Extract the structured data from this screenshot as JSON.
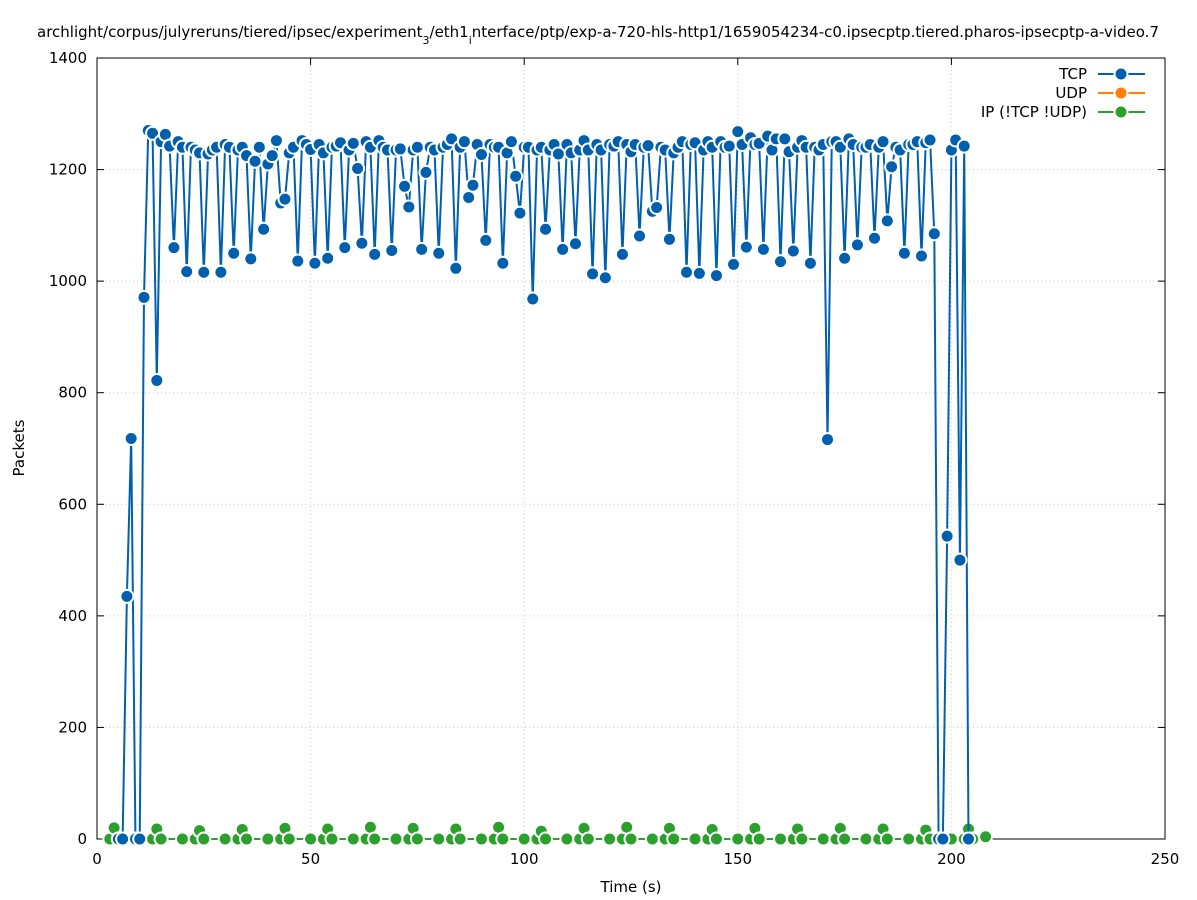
{
  "chart_data": {
    "type": "line",
    "title": "archlight/corpus/julyreruns/tiered/ipsec/experiment",
    "title_sub": "3",
    "title_mid": "/eth1",
    "title_sub2": "i",
    "title_tail": "nterface/ptp/exp-a-720-hls-http1/1659054234-c0.ipsecptp.tiered.pharos-ipsecptp-a-video.7",
    "xlabel": "Time (s)",
    "ylabel": "Packets",
    "xlim": [
      0,
      250
    ],
    "ylim": [
      0,
      1400
    ],
    "xticks": [
      "0",
      "50",
      "100",
      "150",
      "200",
      "250"
    ],
    "yticks": [
      "0",
      "200",
      "400",
      "600",
      "800",
      "1000",
      "1200",
      "1400"
    ],
    "grid": true,
    "legend_position": "top-right",
    "series": [
      {
        "name": "TCP",
        "color": "#0060ad",
        "points": [
          [
            5,
            0
          ],
          [
            6,
            0
          ],
          [
            7,
            435
          ],
          [
            8,
            718
          ],
          [
            9,
            0
          ],
          [
            10,
            0
          ],
          [
            11,
            971
          ],
          [
            12,
            1270
          ],
          [
            13,
            1265
          ],
          [
            14,
            822
          ],
          [
            15,
            1250
          ],
          [
            16,
            1263
          ],
          [
            17,
            1242
          ],
          [
            18,
            1060
          ],
          [
            19,
            1250
          ],
          [
            20,
            1240
          ],
          [
            21,
            1017
          ],
          [
            22,
            1240
          ],
          [
            23,
            1235
          ],
          [
            24,
            1230
          ],
          [
            25,
            1016
          ],
          [
            26,
            1228
          ],
          [
            27,
            1235
          ],
          [
            28,
            1240
          ],
          [
            29,
            1016
          ],
          [
            30,
            1245
          ],
          [
            31,
            1240
          ],
          [
            32,
            1050
          ],
          [
            33,
            1235
          ],
          [
            34,
            1240
          ],
          [
            35,
            1225
          ],
          [
            36,
            1040
          ],
          [
            37,
            1215
          ],
          [
            38,
            1240
          ],
          [
            39,
            1093
          ],
          [
            40,
            1210
          ],
          [
            41,
            1225
          ],
          [
            42,
            1252
          ],
          [
            43,
            1140
          ],
          [
            44,
            1147
          ],
          [
            45,
            1230
          ],
          [
            46,
            1240
          ],
          [
            47,
            1036
          ],
          [
            48,
            1252
          ],
          [
            49,
            1245
          ],
          [
            50,
            1236
          ],
          [
            51,
            1032
          ],
          [
            52,
            1245
          ],
          [
            53,
            1230
          ],
          [
            54,
            1041
          ],
          [
            55,
            1240
          ],
          [
            56,
            1242
          ],
          [
            57,
            1248
          ],
          [
            58,
            1060
          ],
          [
            59,
            1235
          ],
          [
            60,
            1247
          ],
          [
            61,
            1202
          ],
          [
            62,
            1068
          ],
          [
            63,
            1250
          ],
          [
            64,
            1240
          ],
          [
            65,
            1048
          ],
          [
            66,
            1252
          ],
          [
            67,
            1240
          ],
          [
            68,
            1235
          ],
          [
            69,
            1055
          ],
          [
            70,
            1235
          ],
          [
            71,
            1237
          ],
          [
            72,
            1170
          ],
          [
            73,
            1133
          ],
          [
            74,
            1235
          ],
          [
            75,
            1240
          ],
          [
            76,
            1057
          ],
          [
            77,
            1195
          ],
          [
            78,
            1240
          ],
          [
            79,
            1235
          ],
          [
            80,
            1050
          ],
          [
            81,
            1240
          ],
          [
            82,
            1245
          ],
          [
            83,
            1255
          ],
          [
            84,
            1023
          ],
          [
            85,
            1240
          ],
          [
            86,
            1250
          ],
          [
            87,
            1150
          ],
          [
            88,
            1172
          ],
          [
            89,
            1245
          ],
          [
            90,
            1227
          ],
          [
            91,
            1073
          ],
          [
            92,
            1245
          ],
          [
            93,
            1240
          ],
          [
            94,
            1240
          ],
          [
            95,
            1032
          ],
          [
            96,
            1230
          ],
          [
            97,
            1250
          ],
          [
            98,
            1188
          ],
          [
            99,
            1122
          ],
          [
            100,
            1240
          ],
          [
            101,
            1240
          ],
          [
            102,
            968
          ],
          [
            103,
            1235
          ],
          [
            104,
            1240
          ],
          [
            105,
            1093
          ],
          [
            106,
            1235
          ],
          [
            107,
            1245
          ],
          [
            108,
            1228
          ],
          [
            109,
            1057
          ],
          [
            110,
            1245
          ],
          [
            111,
            1230
          ],
          [
            112,
            1067
          ],
          [
            113,
            1235
          ],
          [
            114,
            1252
          ],
          [
            115,
            1235
          ],
          [
            116,
            1013
          ],
          [
            117,
            1245
          ],
          [
            118,
            1235
          ],
          [
            119,
            1006
          ],
          [
            120,
            1245
          ],
          [
            121,
            1242
          ],
          [
            122,
            1250
          ],
          [
            123,
            1048
          ],
          [
            124,
            1245
          ],
          [
            125,
            1232
          ],
          [
            126,
            1245
          ],
          [
            127,
            1081
          ],
          [
            128,
            1240
          ],
          [
            129,
            1243
          ],
          [
            130,
            1125
          ],
          [
            131,
            1132
          ],
          [
            132,
            1240
          ],
          [
            133,
            1235
          ],
          [
            134,
            1075
          ],
          [
            135,
            1230
          ],
          [
            136,
            1240
          ],
          [
            137,
            1250
          ],
          [
            138,
            1016
          ],
          [
            139,
            1245
          ],
          [
            140,
            1248
          ],
          [
            141,
            1014
          ],
          [
            142,
            1235
          ],
          [
            143,
            1250
          ],
          [
            144,
            1240
          ],
          [
            145,
            1010
          ],
          [
            146,
            1250
          ],
          [
            147,
            1240
          ],
          [
            148,
            1242
          ],
          [
            149,
            1030
          ],
          [
            150,
            1268
          ],
          [
            151,
            1245
          ],
          [
            152,
            1061
          ],
          [
            153,
            1257
          ],
          [
            154,
            1245
          ],
          [
            155,
            1247
          ],
          [
            156,
            1057
          ],
          [
            157,
            1260
          ],
          [
            158,
            1235
          ],
          [
            159,
            1255
          ],
          [
            160,
            1035
          ],
          [
            161,
            1255
          ],
          [
            162,
            1232
          ],
          [
            163,
            1054
          ],
          [
            164,
            1240
          ],
          [
            165,
            1252
          ],
          [
            166,
            1240
          ],
          [
            167,
            1032
          ],
          [
            168,
            1240
          ],
          [
            169,
            1235
          ],
          [
            170,
            1245
          ],
          [
            171,
            716
          ],
          [
            172,
            1250
          ],
          [
            173,
            1250
          ],
          [
            174,
            1240
          ],
          [
            175,
            1041
          ],
          [
            176,
            1255
          ],
          [
            177,
            1245
          ],
          [
            178,
            1065
          ],
          [
            179,
            1240
          ],
          [
            180,
            1240
          ],
          [
            181,
            1245
          ],
          [
            182,
            1077
          ],
          [
            183,
            1240
          ],
          [
            184,
            1250
          ],
          [
            185,
            1108
          ],
          [
            186,
            1205
          ],
          [
            187,
            1240
          ],
          [
            188,
            1235
          ],
          [
            189,
            1050
          ],
          [
            190,
            1245
          ],
          [
            191,
            1245
          ],
          [
            192,
            1250
          ],
          [
            193,
            1045
          ],
          [
            194,
            1248
          ],
          [
            195,
            1253
          ],
          [
            196,
            1085
          ],
          [
            197,
            0
          ],
          [
            198,
            0
          ],
          [
            199,
            543
          ],
          [
            200,
            1235
          ],
          [
            201,
            1253
          ],
          [
            202,
            500
          ],
          [
            203,
            1242
          ],
          [
            204,
            0
          ]
        ]
      },
      {
        "name": "UDP",
        "color": "#ff7f0e",
        "points": []
      },
      {
        "name": "IP (!TCP  !UDP)",
        "color": "#2ca02c",
        "points": [
          [
            3,
            0
          ],
          [
            4,
            20
          ],
          [
            5,
            0
          ],
          [
            10,
            0
          ],
          [
            13,
            0
          ],
          [
            14,
            18
          ],
          [
            15,
            0
          ],
          [
            20,
            0
          ],
          [
            23,
            0
          ],
          [
            24,
            15
          ],
          [
            25,
            0
          ],
          [
            30,
            0
          ],
          [
            33,
            0
          ],
          [
            34,
            17
          ],
          [
            35,
            0
          ],
          [
            40,
            0
          ],
          [
            43,
            0
          ],
          [
            44,
            19
          ],
          [
            45,
            0
          ],
          [
            50,
            0
          ],
          [
            53,
            0
          ],
          [
            54,
            18
          ],
          [
            55,
            0
          ],
          [
            60,
            0
          ],
          [
            63,
            0
          ],
          [
            64,
            21
          ],
          [
            65,
            0
          ],
          [
            70,
            0
          ],
          [
            73,
            0
          ],
          [
            74,
            19
          ],
          [
            75,
            0
          ],
          [
            80,
            0
          ],
          [
            83,
            0
          ],
          [
            84,
            18
          ],
          [
            85,
            0
          ],
          [
            90,
            0
          ],
          [
            93,
            0
          ],
          [
            94,
            21
          ],
          [
            95,
            0
          ],
          [
            100,
            0
          ],
          [
            103,
            0
          ],
          [
            104,
            14
          ],
          [
            105,
            0
          ],
          [
            110,
            0
          ],
          [
            113,
            0
          ],
          [
            114,
            19
          ],
          [
            115,
            0
          ],
          [
            120,
            0
          ],
          [
            123,
            0
          ],
          [
            124,
            21
          ],
          [
            125,
            0
          ],
          [
            130,
            0
          ],
          [
            133,
            0
          ],
          [
            134,
            19
          ],
          [
            135,
            0
          ],
          [
            140,
            0
          ],
          [
            143,
            0
          ],
          [
            144,
            17
          ],
          [
            145,
            0
          ],
          [
            150,
            0
          ],
          [
            153,
            0
          ],
          [
            154,
            19
          ],
          [
            155,
            0
          ],
          [
            160,
            0
          ],
          [
            163,
            0
          ],
          [
            164,
            18
          ],
          [
            165,
            0
          ],
          [
            170,
            0
          ],
          [
            173,
            0
          ],
          [
            174,
            19
          ],
          [
            175,
            0
          ],
          [
            180,
            0
          ],
          [
            183,
            0
          ],
          [
            184,
            18
          ],
          [
            185,
            0
          ],
          [
            190,
            0
          ],
          [
            193,
            0
          ],
          [
            194,
            16
          ],
          [
            195,
            0
          ],
          [
            200,
            0
          ],
          [
            203,
            0
          ],
          [
            204,
            18
          ],
          [
            205,
            0
          ],
          [
            208,
            4
          ]
        ]
      }
    ]
  }
}
